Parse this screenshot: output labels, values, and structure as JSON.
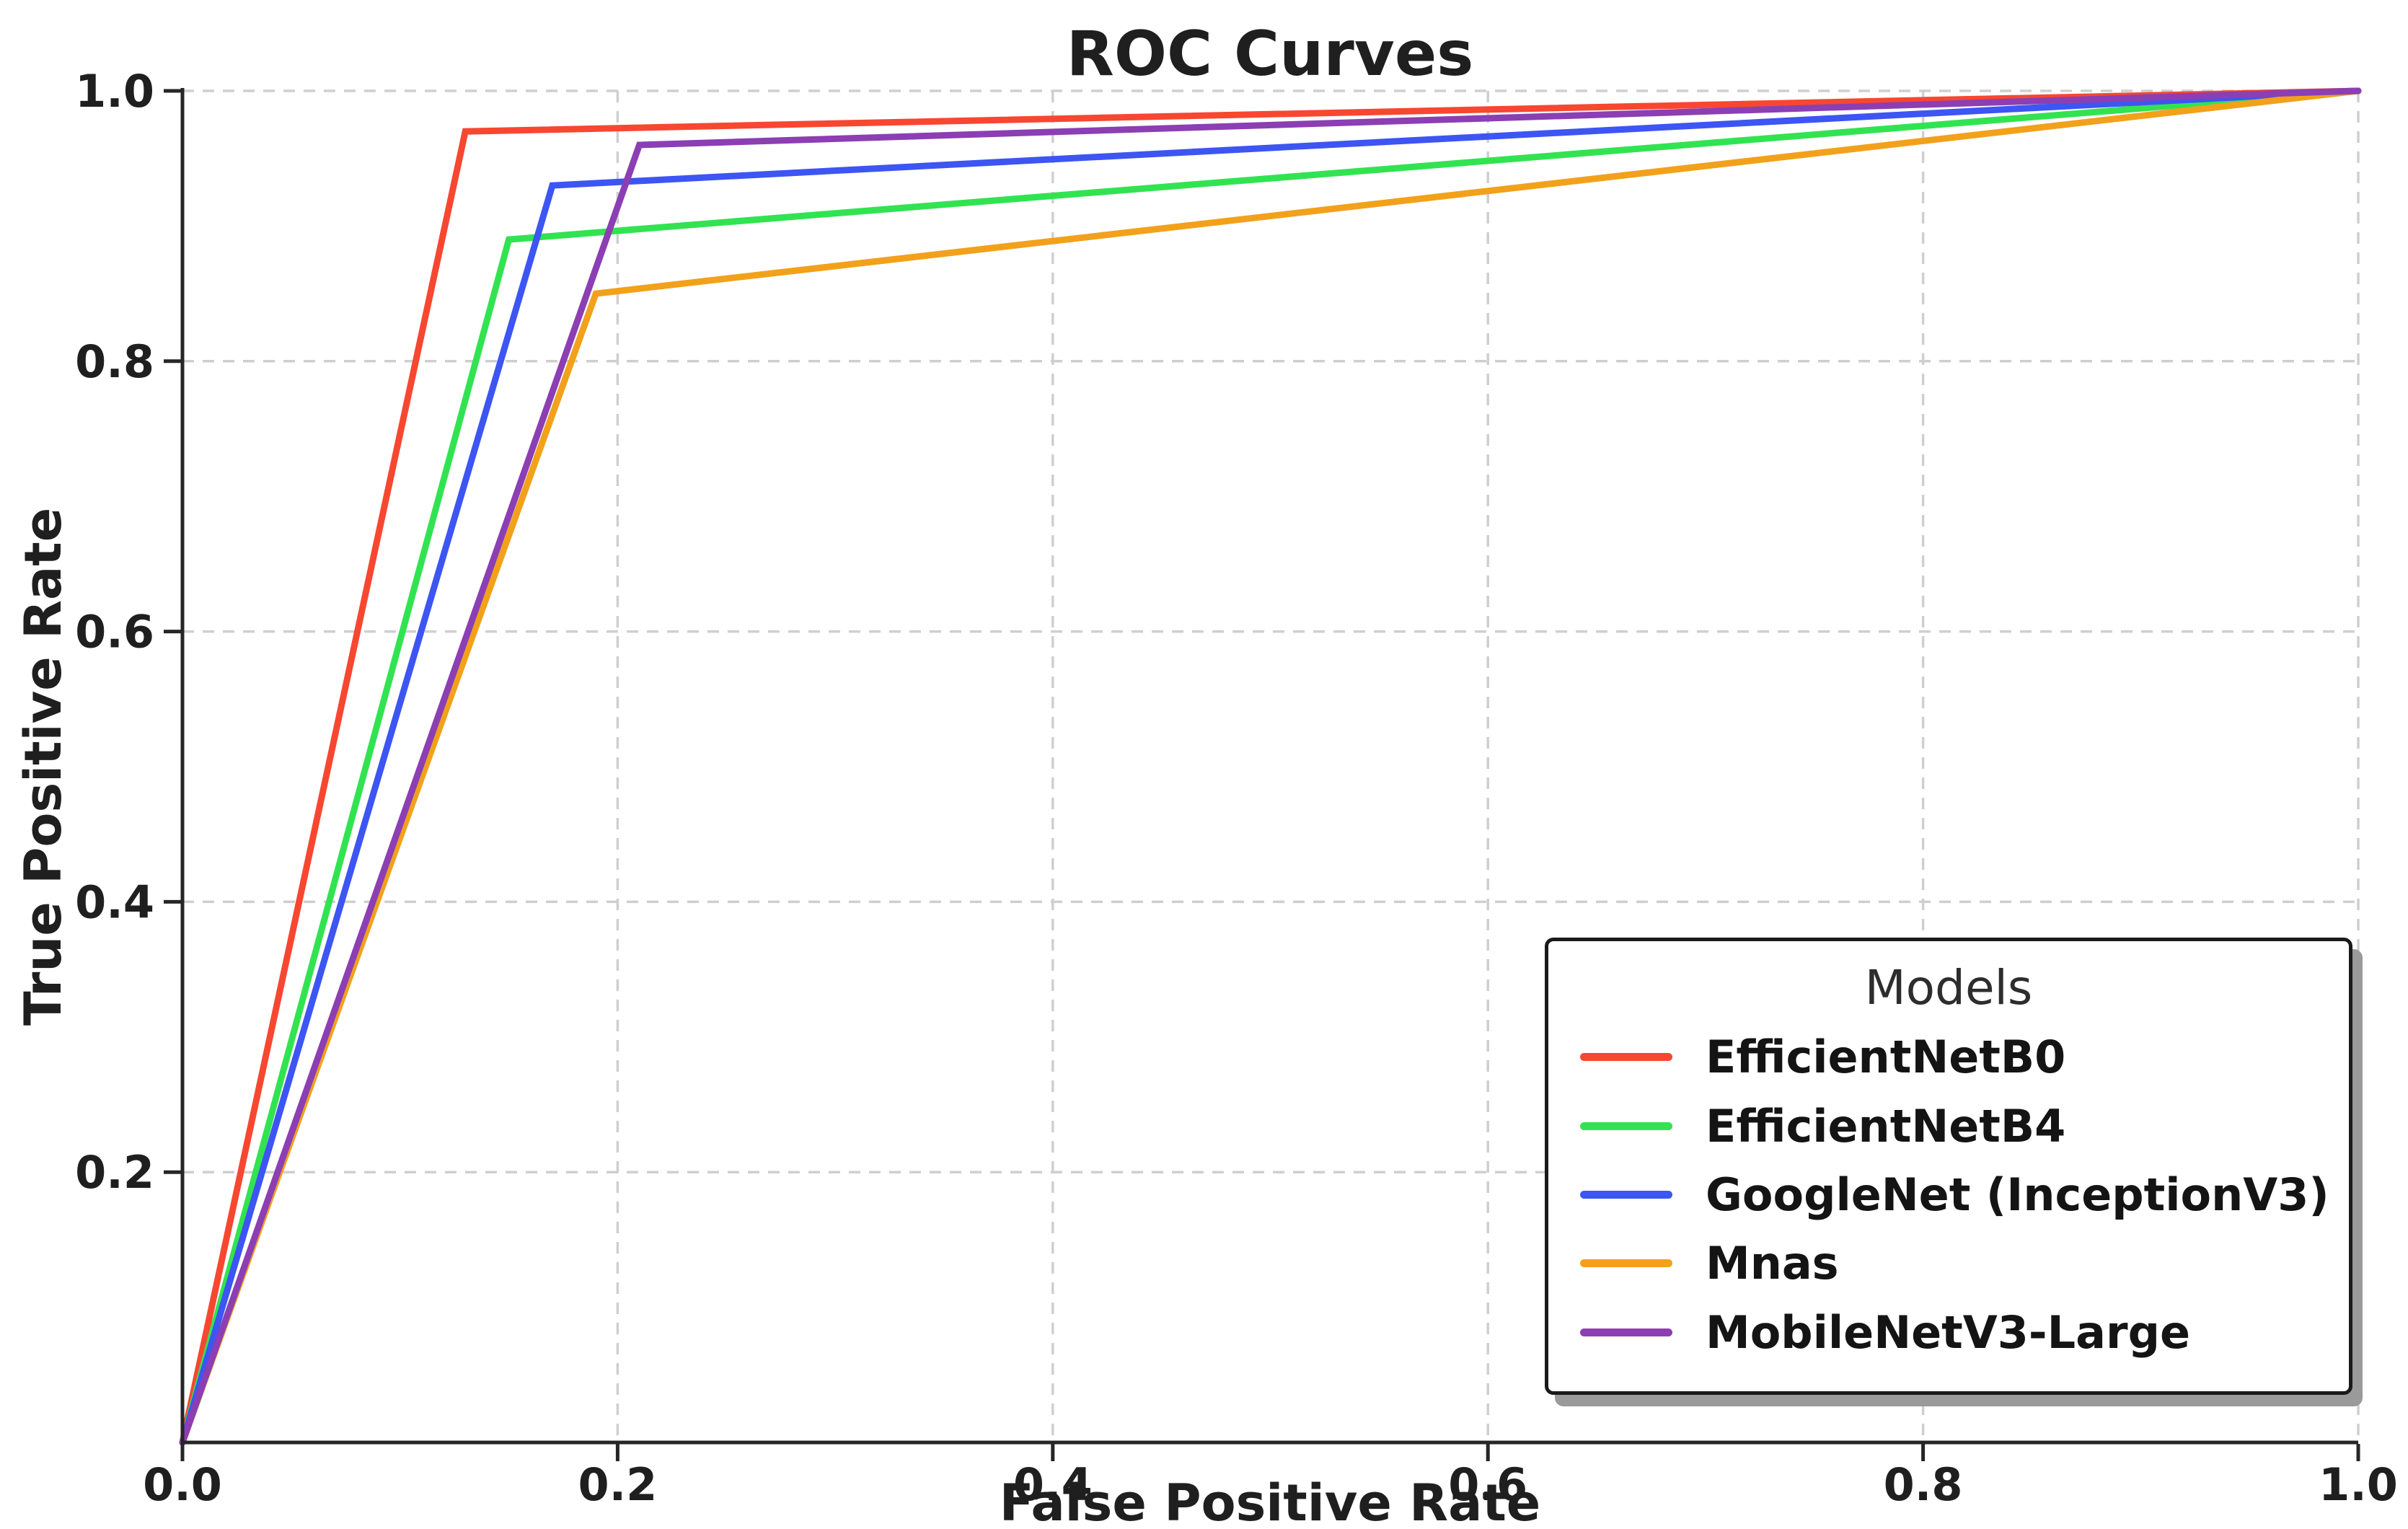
{
  "title": "ROC Curves",
  "chart_data": {
    "type": "line",
    "title": "ROC Curves",
    "xlabel": "False Positive Rate",
    "ylabel": "True Positive Rate",
    "xlim": [
      0.0,
      1.0
    ],
    "ylim": [
      0.0,
      1.0
    ],
    "grid": true,
    "grid_style": "dashed",
    "x_ticks": [
      0.0,
      0.2,
      0.4,
      0.6,
      0.8,
      1.0
    ],
    "x_tick_labels": [
      "0.0",
      "0.2",
      "0.4",
      "0.6",
      "0.8",
      "1.0"
    ],
    "y_ticks": [
      0.2,
      0.4,
      0.6,
      0.8,
      1.0
    ],
    "y_tick_labels": [
      "0.2",
      "0.4",
      "0.6",
      "0.8",
      "1.0"
    ],
    "legend": {
      "title": "Models",
      "position": "lower right"
    },
    "series": [
      {
        "name": "EfficientNetB0",
        "color": "#F74731",
        "points": [
          [
            0.0,
            0.0
          ],
          [
            0.13,
            0.97
          ],
          [
            1.0,
            1.0
          ]
        ]
      },
      {
        "name": "EfficientNetB4",
        "color": "#32E351",
        "points": [
          [
            0.0,
            0.0
          ],
          [
            0.15,
            0.89
          ],
          [
            1.0,
            1.0
          ]
        ]
      },
      {
        "name": "GoogleNet (InceptionV3)",
        "color": "#3D55F2",
        "points": [
          [
            0.0,
            0.0
          ],
          [
            0.17,
            0.93
          ],
          [
            1.0,
            1.0
          ]
        ]
      },
      {
        "name": "Mnas",
        "color": "#F2A11B",
        "points": [
          [
            0.0,
            0.0
          ],
          [
            0.19,
            0.85
          ],
          [
            1.0,
            1.0
          ]
        ]
      },
      {
        "name": "MobileNetV3-Large",
        "color": "#8C3EB3",
        "points": [
          [
            0.0,
            0.0
          ],
          [
            0.21,
            0.96
          ],
          [
            1.0,
            1.0
          ]
        ]
      }
    ],
    "colors": {
      "grid": "#cfcfcf",
      "spine": "#262626",
      "text": "#1a1a1a",
      "background": "#ffffff"
    }
  }
}
